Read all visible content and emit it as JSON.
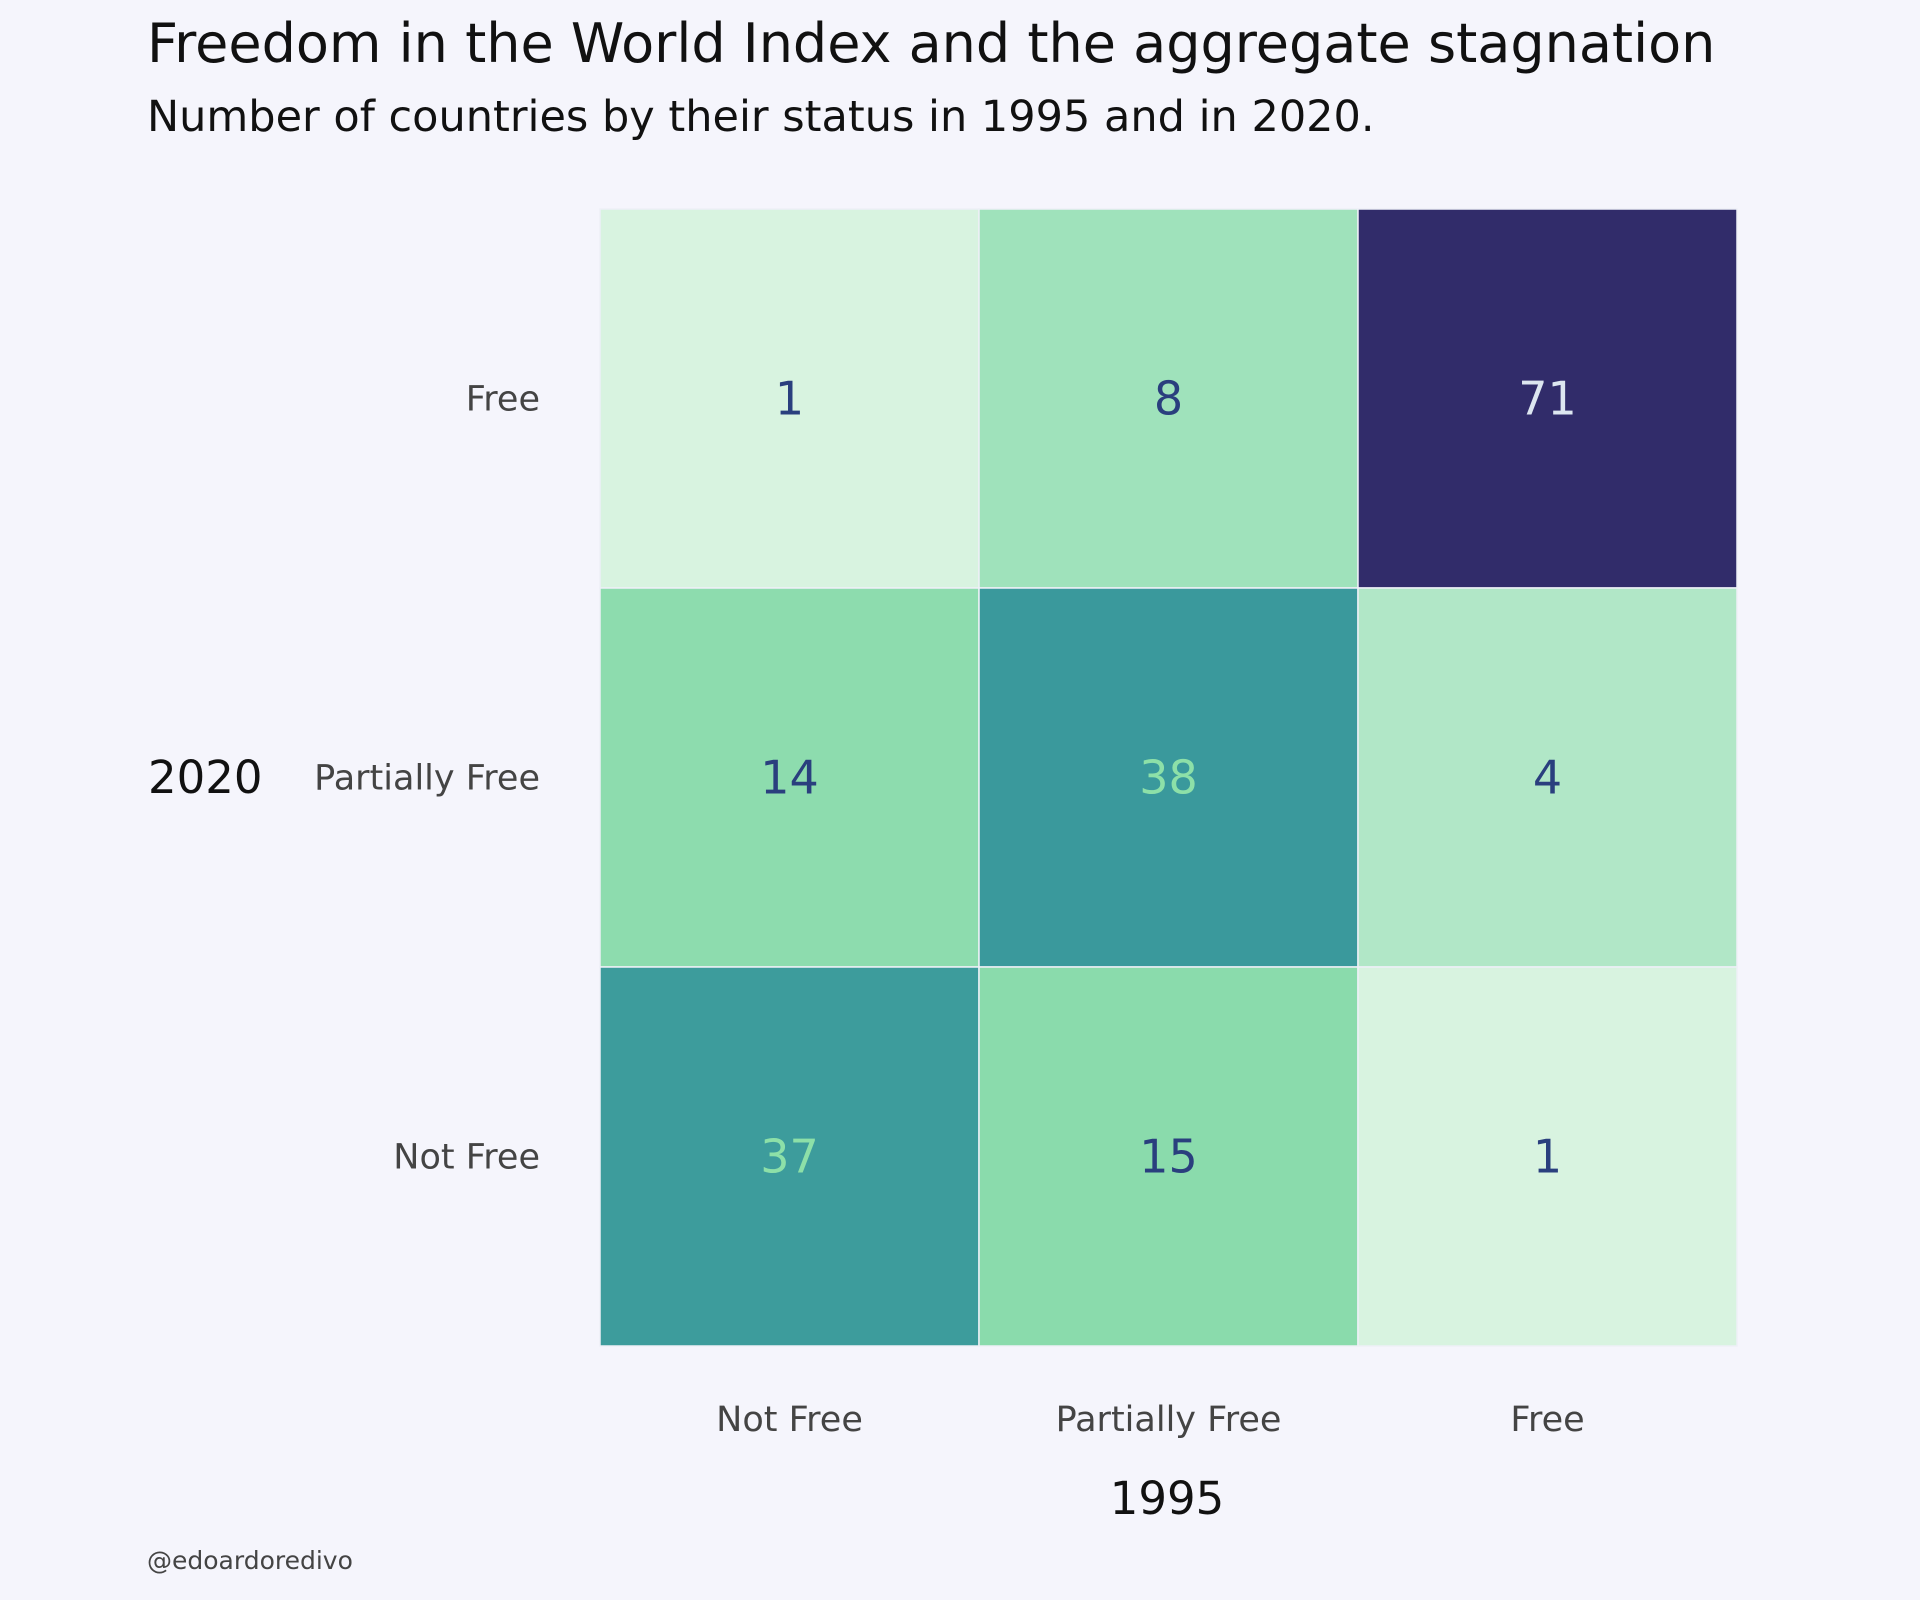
{
  "title": "Freedom in the World Index and the aggregate stagnation",
  "subtitle": "Number of countries by their status in 1995 and in 2020.",
  "credit": "@edoardoredivo",
  "chart_data": {
    "type": "heatmap",
    "xlabel": "1995",
    "ylabel": "2020",
    "x_categories": [
      "Not Free",
      "Partially Free",
      "Free"
    ],
    "y_categories": [
      "Free",
      "Partially Free",
      "Not Free"
    ],
    "values": [
      [
        1,
        8,
        71
      ],
      [
        14,
        38,
        4
      ],
      [
        37,
        15,
        1
      ]
    ],
    "colormap": [
      "#d8f3e0",
      "#a9e5c2",
      "#82d8a6",
      "#33939b",
      "#312c6a"
    ],
    "label_colors": {
      "on_light": "#2a3f7e",
      "on_dark_teal": "#8de0a8",
      "on_darkest": "#dde6f0"
    }
  }
}
